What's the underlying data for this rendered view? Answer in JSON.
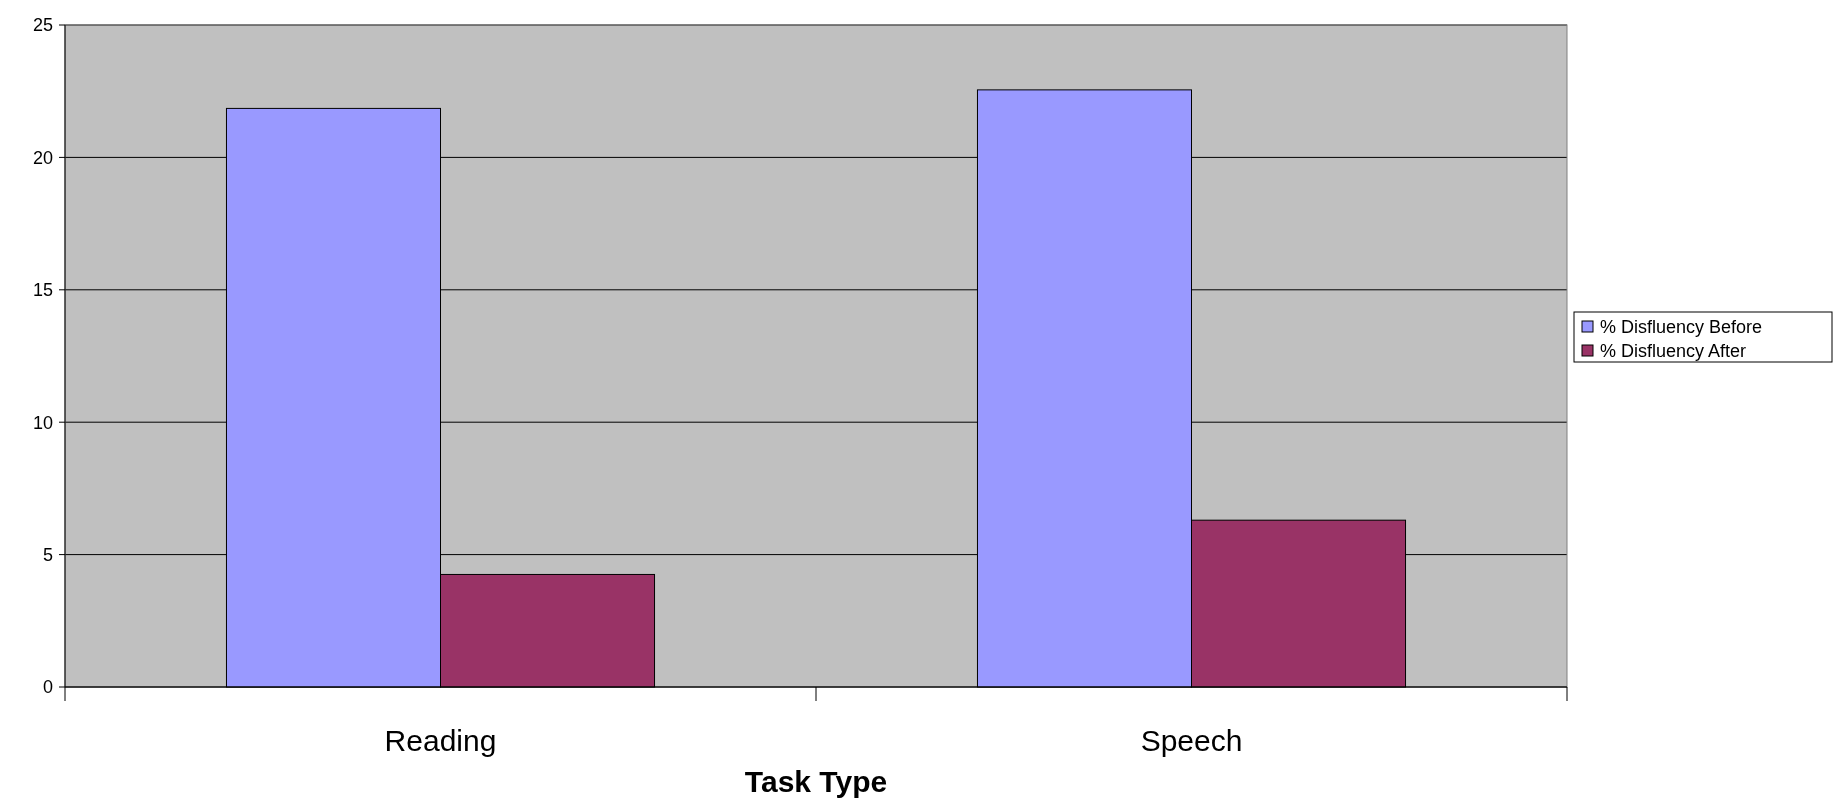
{
  "chart_data": {
    "type": "bar",
    "xlabel": "Task Type",
    "categories": [
      "Reading",
      "Speech"
    ],
    "series": [
      {
        "name": "% Disfluency Before",
        "color": "#9999ff",
        "values": [
          21.85,
          22.55
        ]
      },
      {
        "name": "% Disfluency After",
        "color": "#993366",
        "values": [
          4.25,
          6.3
        ]
      }
    ],
    "ylim": [
      0,
      25
    ],
    "yticks": [
      0,
      5,
      10,
      15,
      20,
      25
    ],
    "grid": "y",
    "legend": "right"
  }
}
